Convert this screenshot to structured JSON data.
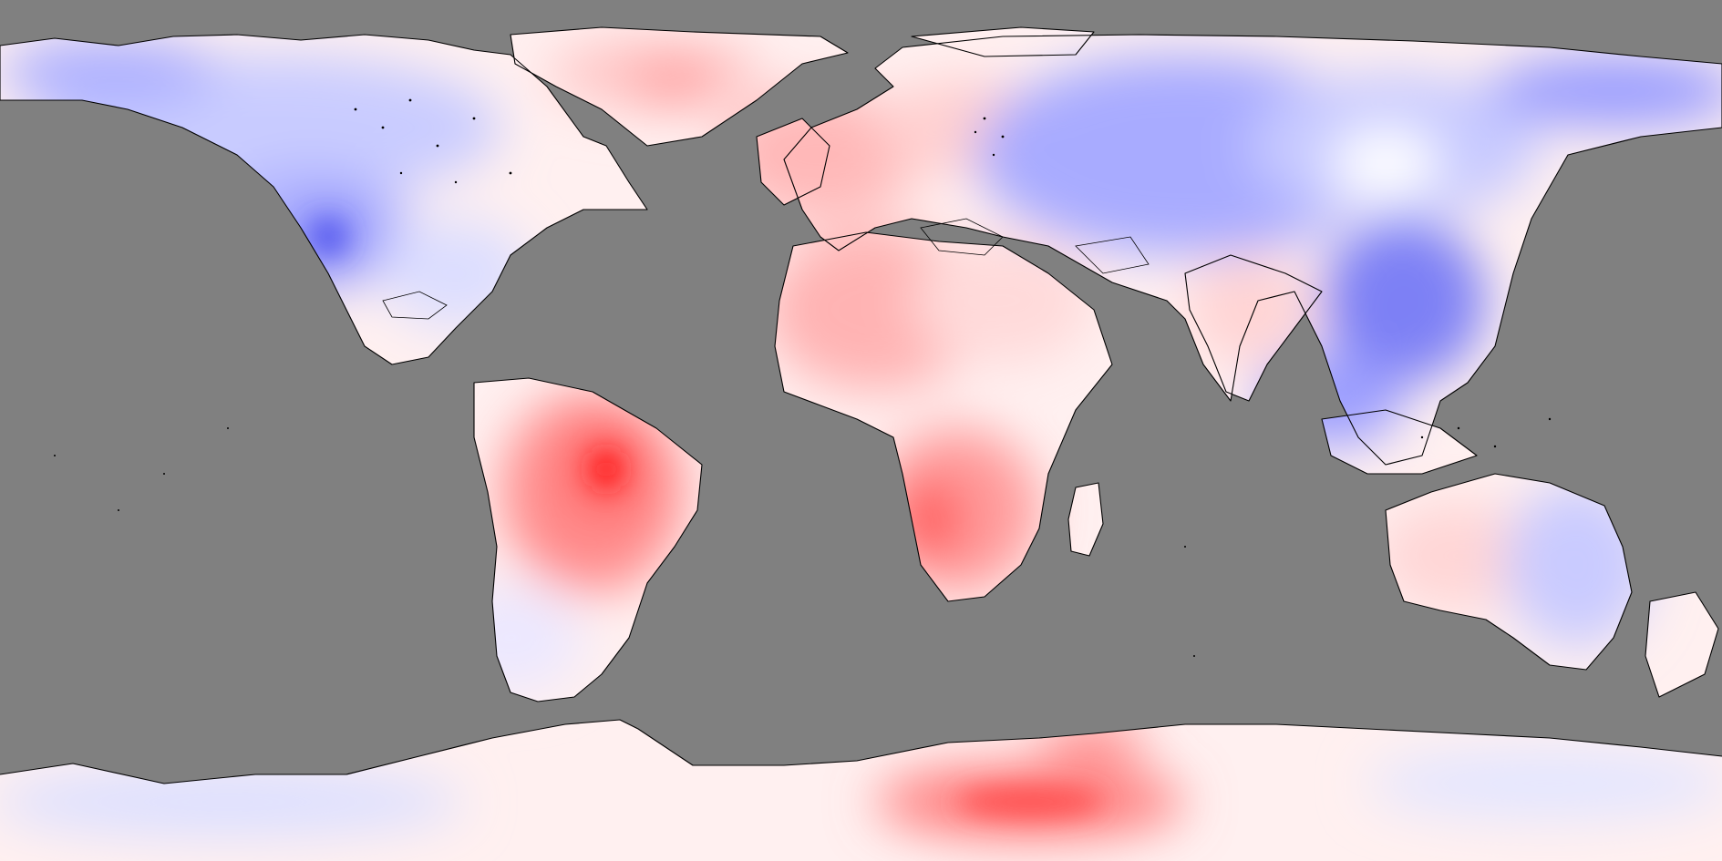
{
  "map": {
    "projection": "equirectangular",
    "ocean_color": "#808080",
    "coastline_color": "#000000",
    "palette": {
      "strong_positive": "#ff2020",
      "positive": "#ff8f8f",
      "weak_positive": "#ffd6d6",
      "near_zero": "#fff3f3",
      "weak_negative": "#d7d9ff",
      "negative": "#a9acff",
      "strong_negative": "#5c5ff0"
    }
  }
}
